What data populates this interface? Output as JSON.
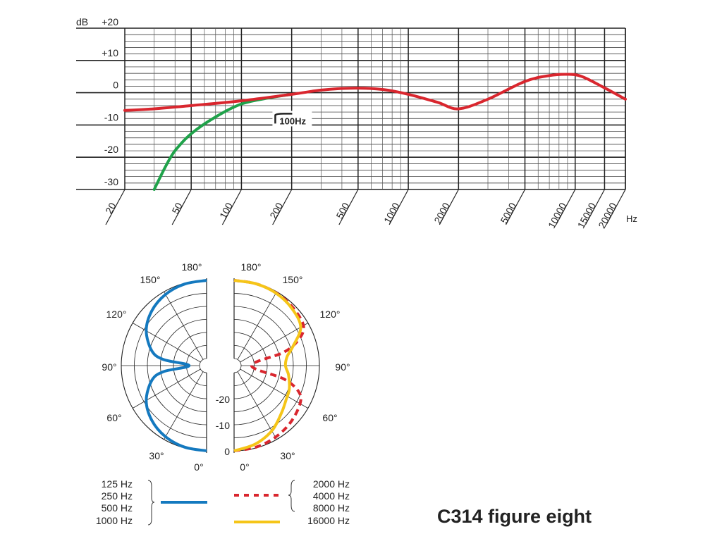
{
  "title": "C314 figure eight",
  "colors": {
    "red": "#d9262e",
    "green": "#1fa24a",
    "blue": "#1479bf",
    "yellow": "#f5c518",
    "grid": "#222222"
  },
  "chart_data": [
    {
      "type": "line",
      "name": "frequency-response",
      "xscale": "log",
      "xlabel": "Hz",
      "ylabel": "dB",
      "xlim": [
        20,
        20000
      ],
      "ylim": [
        -30,
        20
      ],
      "x_tick_labels": [
        "20",
        "50",
        "100",
        "200",
        "500",
        "1000",
        "2000",
        "5000",
        "10000",
        "15000",
        "20000"
      ],
      "x_ticks": [
        20,
        50,
        100,
        200,
        500,
        1000,
        2000,
        5000,
        10000,
        15000,
        20000
      ],
      "y_tick_labels": [
        "+20",
        "+10",
        "0",
        "-10",
        "-20",
        "-30"
      ],
      "y_ticks": [
        20,
        10,
        0,
        -10,
        -20,
        -30
      ],
      "grid": true,
      "annotation": "100Hz",
      "series": [
        {
          "name": "response",
          "color": "#d9262e",
          "x": [
            20,
            30,
            50,
            100,
            200,
            300,
            450,
            700,
            1000,
            1500,
            2000,
            3000,
            5000,
            7000,
            9000,
            11000,
            15000,
            20000
          ],
          "y": [
            -5.5,
            -5,
            -4,
            -2.5,
            -0.5,
            0.8,
            1.4,
            1,
            -0.5,
            -3,
            -5,
            -2,
            3.5,
            5.3,
            5.7,
            5,
            1.5,
            -2
          ]
        },
        {
          "name": "100 Hz roll-off",
          "color": "#1fa24a",
          "x": [
            30,
            35,
            40,
            50,
            70,
            100,
            150,
            200
          ],
          "y": [
            -30,
            -23,
            -18,
            -12.7,
            -7.5,
            -3.5,
            -1.5,
            -0.5
          ]
        }
      ]
    },
    {
      "type": "polar",
      "name": "polar-pattern",
      "angle_labels": [
        "0°",
        "30°",
        "60°",
        "90°",
        "120°",
        "150°",
        "180°"
      ],
      "r_labels": [
        "0",
        "-10",
        "-20"
      ],
      "rlim": [
        -30,
        0
      ],
      "series": [
        {
          "name": "125 / 250 / 500 / 1000 Hz",
          "side": "left",
          "style": "solid",
          "color": "#1479bf",
          "angles": [
            0,
            15,
            30,
            45,
            60,
            75,
            82,
            90,
            98,
            105,
            120,
            135,
            150,
            165,
            180
          ],
          "db": [
            0,
            -0.3,
            -1.2,
            -3,
            -6,
            -11,
            -16,
            -26,
            -16,
            -11,
            -6,
            -3,
            -1.2,
            -0.3,
            0
          ]
        },
        {
          "name": "2000 / 4000 / 8000 Hz",
          "side": "right",
          "style": "dashed",
          "color": "#d9262e",
          "angles": [
            0,
            15,
            30,
            45,
            60,
            68,
            75,
            90,
            105,
            112,
            120,
            135,
            150,
            165,
            180
          ],
          "db": [
            0,
            -0.3,
            -1,
            -2,
            -3.5,
            -6,
            -13,
            -26,
            -13,
            -6,
            -2,
            -1,
            -0.5,
            -0.2,
            0
          ]
        },
        {
          "name": "16000 Hz",
          "side": "right",
          "style": "solid",
          "color": "#f5c518",
          "angles": [
            0,
            15,
            30,
            45,
            58,
            67,
            80,
            90,
            100,
            108,
            120,
            135,
            150,
            165,
            180
          ],
          "db": [
            0,
            -1.5,
            -3.8,
            -7,
            -9,
            -9.7,
            -11.5,
            -13,
            -12,
            -9,
            -3.2,
            -1.5,
            -0.6,
            -0.2,
            0
          ]
        }
      ]
    }
  ],
  "legend": {
    "left_labels": [
      "125 Hz",
      "250 Hz",
      "500 Hz",
      "1000 Hz"
    ],
    "right_labels": [
      "2000 Hz",
      "4000 Hz",
      "8000 Hz",
      "16000 Hz"
    ]
  }
}
